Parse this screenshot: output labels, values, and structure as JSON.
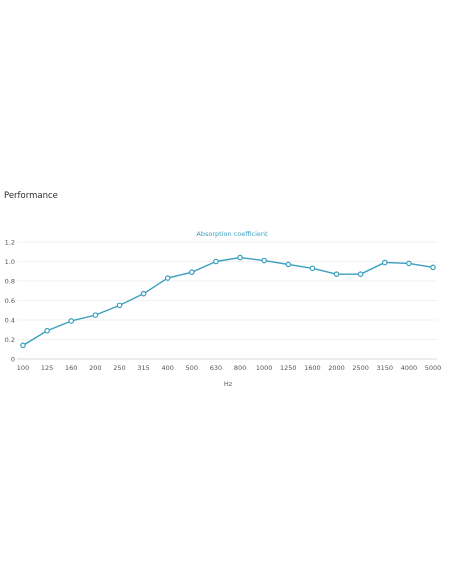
{
  "section": {
    "title": "Performance"
  },
  "chart_data": {
    "type": "line",
    "title": "Absorption coefficient",
    "xlabel": "Hz",
    "ylabel": "",
    "ylim": [
      0,
      1.2
    ],
    "yticks": [
      "0",
      "0.2",
      "0.4",
      "0.6",
      "0.8",
      "1.0",
      "1.2"
    ],
    "grid": true,
    "legend": "none",
    "categories": [
      "100",
      "125",
      "160",
      "200",
      "250",
      "315",
      "400",
      "500",
      "630",
      "800",
      "1000",
      "1250",
      "1600",
      "2000",
      "2500",
      "3150",
      "4000",
      "5000"
    ],
    "series": [
      {
        "values": [
          0.14,
          0.29,
          0.39,
          0.45,
          0.55,
          0.67,
          0.83,
          0.89,
          1.0,
          1.04,
          1.01,
          0.97,
          0.93,
          0.87,
          0.87,
          0.99,
          0.98,
          0.94
        ]
      }
    ],
    "colors": {
      "line": "#3a9fbf",
      "marker_fill": "#ffffff",
      "grid": "#eeeeee",
      "axis": "#cccccc"
    }
  }
}
